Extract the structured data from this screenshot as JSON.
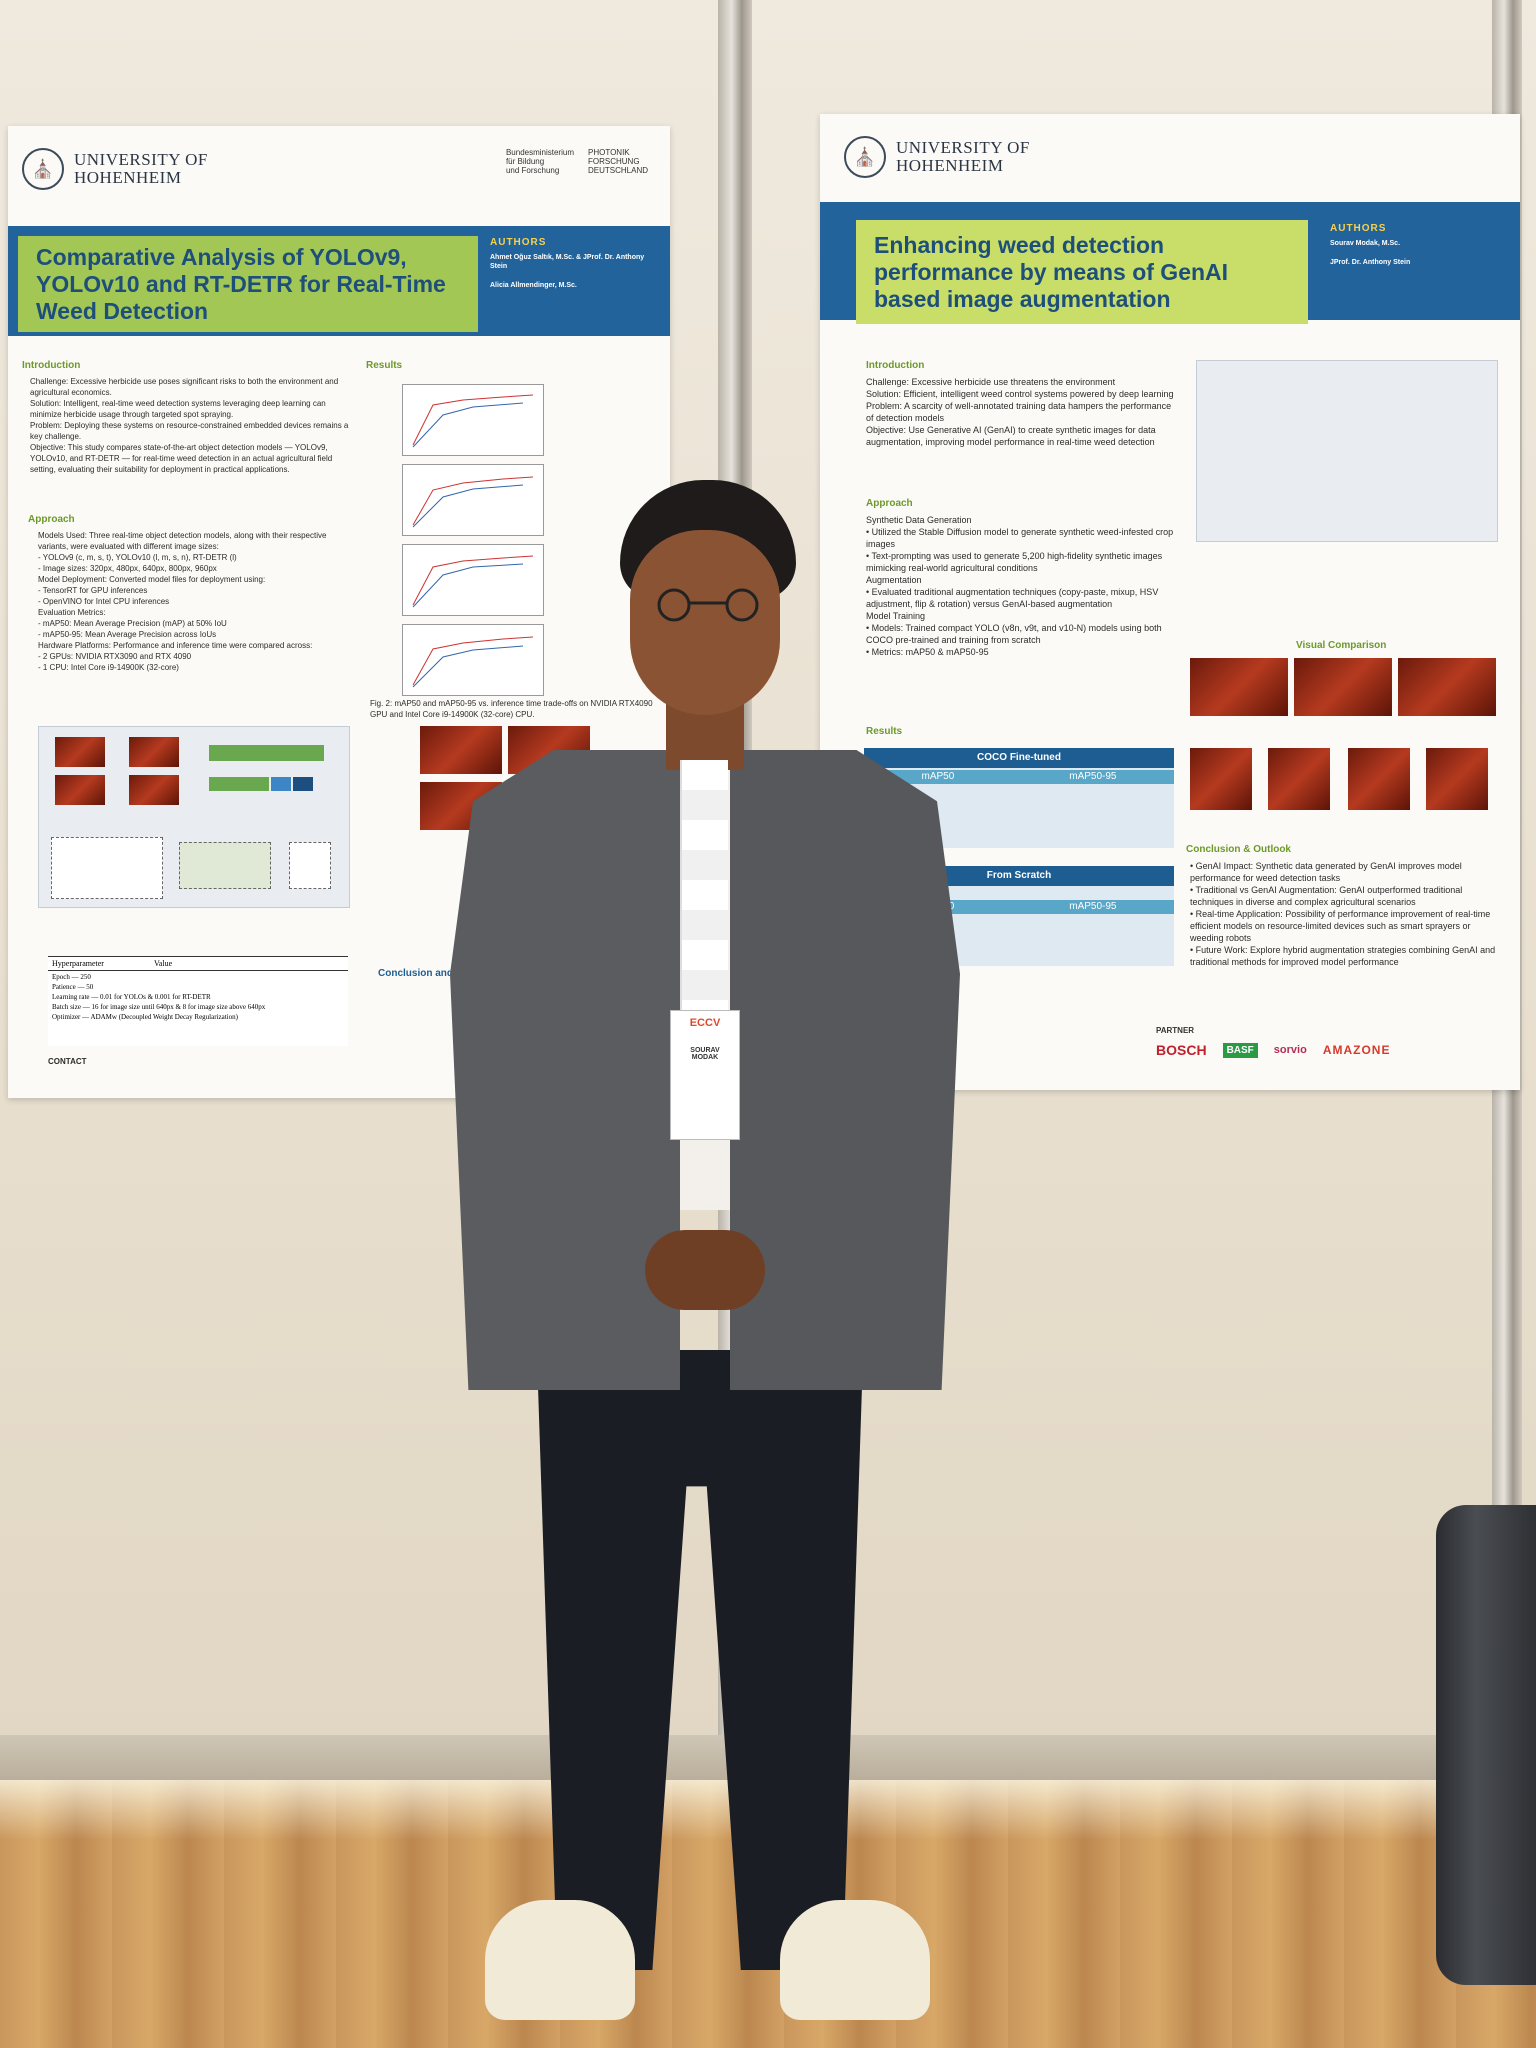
{
  "poster_left": {
    "university": "UNIVERSITY OF\nHOHENHEIM",
    "sponsor_1": "Bundesministerium\nfür Bildung\nund Forschung",
    "sponsor_2": "PHOTONIK\nFORSCHUNG\nDEUTSCHLAND",
    "title": "Comparative Analysis of YOLOv9, YOLOv10 and RT-DETR for Real-Time Weed Detection",
    "authors_heading": "AUTHORS",
    "author_1": "Ahmet Oğuz Saltık, M.Sc. & JProf. Dr. Anthony Stein",
    "author_2": "Alicia Allmendinger, M.Sc.",
    "sections": {
      "introduction": "Introduction",
      "approach": "Approach",
      "results": "Results",
      "conclusion": "Conclusion and"
    },
    "intro_text": "Challenge: Excessive herbicide use poses significant risks to both the environment and agricultural economics.\nSolution: Intelligent, real-time weed detection systems leveraging deep learning can minimize herbicide usage through targeted spot spraying.\nProblem: Deploying these systems on resource-constrained embedded devices remains a key challenge.\nObjective: This study compares state-of-the-art object detection models — YOLOv9, YOLOv10, and RT-DETR — for real-time weed detection in an actual agricultural field setting, evaluating their suitability for deployment in practical applications.",
    "approach_text": "Models Used: Three real-time object detection models, along with their respective variants, were evaluated with different image sizes:\n- YOLOv9 (c, m, s, t), YOLOv10 (l, m, s, n), RT-DETR (l)\n- Image sizes: 320px, 480px, 640px, 800px, 960px\nModel Deployment: Converted model files for deployment using:\n- TensorRT for GPU inferences\n- OpenVINO for Intel CPU inferences\nEvaluation Metrics:\n- mAP50: Mean Average Precision (mAP) at 50% IoU\n- mAP50-95: Mean Average Precision across IoUs\nHardware Platforms: Performance and inference time were compared across:\n- 2 GPUs: NVIDIA RTX3090 and RTX 4090\n- 1 CPU: Intel Core i9-14900K (32-core)",
    "fig2_caption": "Fig. 2: mAP50 and mAP50-95 vs. inference time trade-offs on NVIDIA RTX4090 GPU and Intel Core i9-14900K (32-core) CPU.",
    "table_header": [
      "Hyperparameter",
      "Value"
    ],
    "table_rows": [
      [
        "Epoch",
        "250"
      ],
      [
        "Patience",
        "50"
      ],
      [
        "Learning rate",
        "0.01 for YOLOs & 0.001 for RT-DETR"
      ],
      [
        "Batch size",
        "16 for image size until 640px & 8 for image size above 640px"
      ],
      [
        "Optimizer",
        "ADAMw (Decoupled Weight Decay Regularization)"
      ]
    ],
    "contact": "CONTACT"
  },
  "poster_right": {
    "university": "UNIVERSITY OF\nHOHENHEIM",
    "title": "Enhancing weed detection performance by means of GenAI based image augmentation",
    "authors_heading": "AUTHORS",
    "author_1": "Sourav Modak, M.Sc.",
    "author_2": "JProf. Dr. Anthony Stein",
    "sections": {
      "introduction": "Introduction",
      "approach": "Approach",
      "results": "Results",
      "visual": "Visual Comparison",
      "conclusion": "Conclusion & Outlook"
    },
    "intro_text": "Challenge: Excessive herbicide use threatens the environment\nSolution: Efficient, intelligent weed control systems powered by deep learning\nProblem: A scarcity of well-annotated training data hampers the performance of detection models\nObjective: Use Generative AI (GenAI) to create synthetic images for data augmentation, improving model performance in real-time weed detection",
    "approach_text": "Synthetic Data Generation\n• Utilized the Stable Diffusion model to generate synthetic weed-infested crop images\n• Text-prompting was used to generate 5,200 high-fidelity synthetic images mimicking real-world agricultural conditions\nAugmentation\n• Evaluated traditional augmentation techniques (copy-paste, mixup, HSV adjustment, flip & rotation) versus GenAI-based augmentation\nModel Training\n• Models: Trained compact YOLO (v8n, v9t, and v10-N) models using both COCO pre-trained and training from scratch\n• Metrics: mAP50 & mAP50-95",
    "table1_title": "COCO Fine-tuned",
    "table2_title": "From Scratch",
    "table_cols": [
      "mAP50",
      "mAP50-95"
    ],
    "conclusion_text": "• GenAI Impact: Synthetic data generated by GenAI improves model performance for weed detection tasks\n• Traditional vs GenAI Augmentation: GenAI outperformed traditional techniques in diverse and complex agricultural scenarios\n• Real-time Application: Possibility of performance improvement of real-time efficient models on resource-limited devices such as smart sprayers or weeding robots\n• Future Work: Explore hybrid augmentation strategies combining GenAI and traditional methods for improved model performance",
    "partner_label": "PARTNER",
    "partners": [
      "BOSCH",
      "BASF",
      "sorvio",
      "AMAZONE"
    ]
  },
  "badge": {
    "conference": "ECCV",
    "first_name": "SOURAV",
    "last_name": "MODAK"
  }
}
